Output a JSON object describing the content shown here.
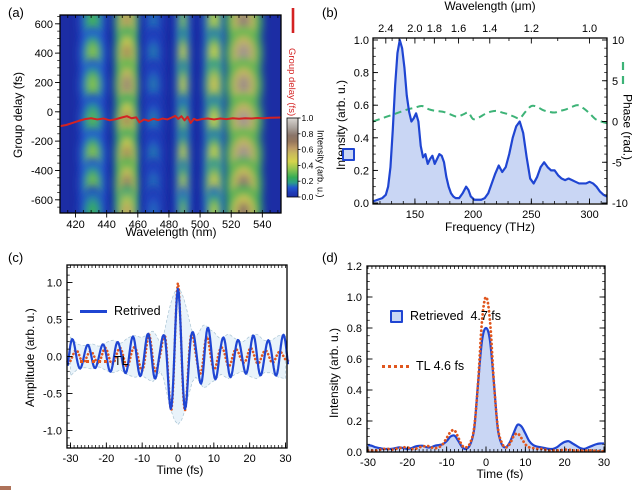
{
  "colors": {
    "blue": "#1f45d2",
    "blue_fill": "#c9d6f4",
    "orange": "#e0561e",
    "green": "#3db377",
    "red": "#d42222",
    "envelope_fill": "#e9f3fa",
    "envelope_edge": "#a9c4d4",
    "heat_bg": "#1c2da4",
    "heat_stops": [
      [
        0,
        "#1c2da4"
      ],
      [
        0.06,
        "#1f3cb8"
      ],
      [
        0.12,
        "#2257d0"
      ],
      [
        0.18,
        "#2b9c8a"
      ],
      [
        0.25,
        "#35ad55"
      ],
      [
        0.35,
        "#8ec44e"
      ],
      [
        0.45,
        "#d6d44c"
      ],
      [
        0.55,
        "#c9b95c"
      ],
      [
        0.62,
        "#bd9a66"
      ],
      [
        0.7,
        "#97775c"
      ],
      [
        0.78,
        "#8a7468"
      ],
      [
        0.88,
        "#aca49e"
      ],
      [
        1,
        "#d9d5d1"
      ]
    ]
  },
  "chart_data": [
    {
      "type": "heatmap",
      "panel_label": "(a)",
      "xlabel": "Wavelength (nm)",
      "ylabel": "Group delay (fs)",
      "xlim": [
        410,
        552
      ],
      "ylim": [
        -690,
        660
      ],
      "x_ticks": [
        420,
        440,
        460,
        480,
        500,
        520,
        540
      ],
      "y_ticks": [
        600,
        400,
        200,
        0,
        -200,
        -400,
        -600
      ],
      "colorbar": {
        "title": "Intensity (arb. u.)",
        "ticks": [
          "1.0",
          "0.8",
          "0.6",
          "0.4",
          "0.2",
          "0.0"
        ],
        "range": [
          0,
          1
        ]
      },
      "heat_columns": [
        [
          431,
          0.38,
          9
        ],
        [
          453,
          0.85,
          8
        ],
        [
          470,
          0.18,
          7
        ],
        [
          489,
          0.5,
          4.5
        ],
        [
          509,
          0.55,
          7
        ],
        [
          528,
          1.0,
          12
        ]
      ],
      "heat_rows": [
        [
          620,
          0.85
        ],
        [
          400,
          0.95
        ],
        [
          185,
          1.0
        ],
        [
          -55,
          0.9
        ],
        [
          -290,
          0.95
        ],
        [
          -490,
          0.95
        ],
        [
          -680,
          0.8
        ]
      ],
      "overlay_line": {
        "label": "Group delay (fs)",
        "points": [
          [
            410,
            -98
          ],
          [
            414,
            -90
          ],
          [
            418,
            -76
          ],
          [
            422,
            -62
          ],
          [
            426,
            -50
          ],
          [
            430,
            -44
          ],
          [
            434,
            -52
          ],
          [
            438,
            -46
          ],
          [
            442,
            -58
          ],
          [
            446,
            -50
          ],
          [
            450,
            -38
          ],
          [
            453,
            -30
          ],
          [
            456,
            -44
          ],
          [
            459,
            -38
          ],
          [
            461,
            -72
          ],
          [
            464,
            -52
          ],
          [
            467,
            -62
          ],
          [
            470,
            -48
          ],
          [
            473,
            -56
          ],
          [
            476,
            -46
          ],
          [
            479,
            -52
          ],
          [
            482,
            -38
          ],
          [
            484,
            -28
          ],
          [
            486,
            -48
          ],
          [
            488,
            -30
          ],
          [
            490,
            -58
          ],
          [
            492,
            -34
          ],
          [
            494,
            -76
          ],
          [
            496,
            -48
          ],
          [
            498,
            -58
          ],
          [
            501,
            -50
          ],
          [
            505,
            -46
          ],
          [
            509,
            -52
          ],
          [
            513,
            -46
          ],
          [
            517,
            -50
          ],
          [
            521,
            -44
          ],
          [
            525,
            -47
          ],
          [
            529,
            -44
          ],
          [
            533,
            -46
          ],
          [
            537,
            -42
          ],
          [
            541,
            -44
          ],
          [
            545,
            -41
          ],
          [
            549,
            -40
          ],
          [
            552,
            -39
          ]
        ]
      }
    },
    {
      "type": "line",
      "panel_label": "(b)",
      "top_axis": {
        "title": "Wavelength (μm)",
        "tick_labels": [
          "2.4",
          "2.0",
          "1.8",
          "1.6",
          "1.4",
          "1.2",
          "1.0"
        ],
        "tick_freqs": [
          125,
          150,
          166.7,
          187.5,
          214.3,
          250,
          300
        ],
        "minor_freqs": [
          130.4,
          136.4,
          142.9,
          157.9,
          176.5,
          200,
          230.8,
          272.7
        ]
      },
      "xlabel": "Frequency (THz)",
      "ylabel": "Intensity (arb. u.)",
      "y2label": "Phase (rad.)",
      "xlim": [
        114,
        315
      ],
      "ylim": [
        0,
        1
      ],
      "y2lim": [
        -10,
        10
      ],
      "x_ticks": [
        150,
        200,
        250,
        300
      ],
      "y_ticks": [
        "1.0",
        "0.8",
        "0.6",
        "0.4",
        "0.2",
        "0.0"
      ],
      "y2_ticks": [
        "10",
        "5",
        "0",
        "-5",
        "-10"
      ],
      "series": [
        {
          "name": "intensity",
          "x": [
            114,
            118,
            122,
            125,
            127,
            129,
            131,
            133,
            135,
            137,
            139,
            141,
            143,
            145,
            147,
            149,
            151,
            153,
            155,
            157,
            159,
            161,
            163,
            165,
            167,
            169,
            171,
            173,
            175,
            177,
            179,
            181,
            183,
            185,
            188,
            191,
            194,
            196,
            198,
            201,
            204,
            207,
            210,
            213,
            216,
            219,
            222,
            225,
            228,
            231,
            234,
            237,
            240,
            243,
            246,
            249,
            252,
            255,
            258,
            261,
            264,
            267,
            270,
            273,
            276,
            279,
            282,
            285,
            288,
            291,
            294,
            297,
            300,
            303,
            306,
            309,
            312,
            315
          ],
          "y": [
            0.01,
            0.02,
            0.03,
            0.05,
            0.1,
            0.22,
            0.45,
            0.72,
            0.92,
            1.0,
            0.95,
            0.83,
            0.66,
            0.56,
            0.5,
            0.52,
            0.55,
            0.5,
            0.35,
            0.28,
            0.3,
            0.24,
            0.27,
            0.29,
            0.24,
            0.27,
            0.3,
            0.29,
            0.25,
            0.16,
            0.1,
            0.06,
            0.04,
            0.03,
            0.03,
            0.06,
            0.1,
            0.08,
            0.04,
            0.02,
            0.02,
            0.02,
            0.03,
            0.06,
            0.12,
            0.18,
            0.23,
            0.19,
            0.22,
            0.3,
            0.4,
            0.47,
            0.5,
            0.43,
            0.28,
            0.15,
            0.12,
            0.16,
            0.22,
            0.25,
            0.22,
            0.2,
            0.2,
            0.17,
            0.15,
            0.14,
            0.15,
            0.14,
            0.13,
            0.12,
            0.12,
            0.12,
            0.13,
            0.12,
            0.1,
            0.07,
            0.05,
            0.04
          ]
        },
        {
          "name": "phase",
          "x": [
            114,
            120,
            126,
            132,
            138,
            144,
            150,
            156,
            162,
            168,
            174,
            180,
            186,
            192,
            196,
            200,
            205,
            210,
            215,
            220,
            225,
            230,
            235,
            240,
            245,
            250,
            255,
            260,
            265,
            270,
            275,
            280,
            285,
            290,
            295,
            300,
            305,
            310,
            315
          ],
          "y": [
            0.0,
            0.3,
            0.6,
            0.9,
            1.2,
            1.5,
            1.7,
            1.9,
            1.5,
            1.3,
            1.2,
            0.9,
            0.6,
            0.9,
            1.1,
            0.3,
            0.5,
            0.9,
            1.2,
            1.3,
            1.1,
            0.9,
            0.6,
            0.4,
            1.2,
            1.9,
            1.8,
            1.4,
            1.2,
            1.1,
            1.3,
            1.5,
            1.8,
            2.0,
            1.6,
            1.0,
            0.3,
            0.0,
            -0.2
          ]
        }
      ]
    },
    {
      "type": "line",
      "panel_label": "(c)",
      "xlabel": "Time (fs)",
      "ylabel": "Amplitude (arb. u.)",
      "xlim": [
        -30,
        30
      ],
      "ylim": [
        -1.2,
        1.2
      ],
      "x_ticks": [
        -30,
        -20,
        -10,
        0,
        10,
        20,
        30
      ],
      "y_ticks": [
        "1.0",
        "0.5",
        "0.0",
        "-0.5",
        "-1.0"
      ],
      "legend": [
        {
          "label": "Retrived"
        },
        {
          "label": "TL"
        }
      ],
      "carrier_cycles_per_fs": {
        "retrieved": 0.238,
        "tl": 0.246
      },
      "envelope_retrieved": [
        [
          -30,
          0.26
        ],
        [
          -28,
          0.17
        ],
        [
          -26,
          0.15
        ],
        [
          -24,
          0.17
        ],
        [
          -22,
          0.14
        ],
        [
          -20,
          0.19
        ],
        [
          -18,
          0.22
        ],
        [
          -16,
          0.18
        ],
        [
          -14,
          0.25
        ],
        [
          -12,
          0.28
        ],
        [
          -10,
          0.26
        ],
        [
          -8,
          0.32
        ],
        [
          -7,
          0.34
        ],
        [
          -6,
          0.28
        ],
        [
          -5,
          0.2
        ],
        [
          -4,
          0.3
        ],
        [
          -3,
          0.52
        ],
        [
          -2,
          0.72
        ],
        [
          -1,
          0.86
        ],
        [
          0,
          0.92
        ],
        [
          1,
          0.86
        ],
        [
          2,
          0.72
        ],
        [
          3,
          0.52
        ],
        [
          4,
          0.34
        ],
        [
          5,
          0.28
        ],
        [
          6,
          0.34
        ],
        [
          7,
          0.42
        ],
        [
          8,
          0.41
        ],
        [
          9,
          0.36
        ],
        [
          10,
          0.33
        ],
        [
          12,
          0.24
        ],
        [
          14,
          0.3
        ],
        [
          16,
          0.24
        ],
        [
          18,
          0.2
        ],
        [
          20,
          0.27
        ],
        [
          22,
          0.3
        ],
        [
          24,
          0.22
        ],
        [
          26,
          0.22
        ],
        [
          28,
          0.28
        ],
        [
          30,
          0.3
        ]
      ],
      "envelope_tl": [
        [
          -30,
          0.08
        ],
        [
          -28,
          0.09
        ],
        [
          -26,
          0.08
        ],
        [
          -24,
          0.07
        ],
        [
          -22,
          0.1
        ],
        [
          -20,
          0.12
        ],
        [
          -18,
          0.1
        ],
        [
          -16,
          0.12
        ],
        [
          -14,
          0.14
        ],
        [
          -12,
          0.12
        ],
        [
          -10,
          0.2
        ],
        [
          -8,
          0.3
        ],
        [
          -7,
          0.28
        ],
        [
          -6,
          0.18
        ],
        [
          -5,
          0.12
        ],
        [
          -4,
          0.28
        ],
        [
          -3,
          0.5
        ],
        [
          -2,
          0.73
        ],
        [
          -1,
          0.9
        ],
        [
          0,
          1.0
        ],
        [
          1,
          0.9
        ],
        [
          2,
          0.73
        ],
        [
          3,
          0.5
        ],
        [
          4,
          0.3
        ],
        [
          5,
          0.18
        ],
        [
          6,
          0.22
        ],
        [
          7,
          0.3
        ],
        [
          8,
          0.28
        ],
        [
          9,
          0.22
        ],
        [
          10,
          0.18
        ],
        [
          12,
          0.12
        ],
        [
          14,
          0.14
        ],
        [
          16,
          0.1
        ],
        [
          18,
          0.08
        ],
        [
          20,
          0.12
        ],
        [
          22,
          0.1
        ],
        [
          24,
          0.08
        ],
        [
          26,
          0.09
        ],
        [
          28,
          0.07
        ],
        [
          30,
          0.06
        ]
      ]
    },
    {
      "type": "line",
      "panel_label": "(d)",
      "xlabel": "Time (fs)",
      "ylabel": "Intensity (arb. u.)",
      "xlim": [
        -30,
        30
      ],
      "ylim": [
        0,
        1.2
      ],
      "x_ticks": [
        -30,
        -20,
        -10,
        0,
        10,
        20,
        30
      ],
      "y_ticks": [
        "1.2",
        "1.0",
        "0.8",
        "0.6",
        "0.4",
        "0.2",
        "0.0"
      ],
      "legend": [
        {
          "label": "Retrieved  4.7 fs"
        },
        {
          "label": "TL 4.6 fs"
        }
      ],
      "x_start": -30,
      "x_step": 1,
      "series": [
        {
          "name": "Retrieved",
          "y": [
            0.045,
            0.04,
            0.03,
            0.025,
            0.02,
            0.02,
            0.02,
            0.025,
            0.03,
            0.025,
            0.02,
            0.025,
            0.035,
            0.04,
            0.04,
            0.03,
            0.03,
            0.04,
            0.045,
            0.05,
            0.07,
            0.1,
            0.105,
            0.07,
            0.03,
            0.02,
            0.05,
            0.15,
            0.45,
            0.72,
            0.8,
            0.72,
            0.45,
            0.15,
            0.05,
            0.03,
            0.06,
            0.12,
            0.175,
            0.165,
            0.12,
            0.07,
            0.045,
            0.035,
            0.03,
            0.025,
            0.02,
            0.02,
            0.03,
            0.05,
            0.065,
            0.07,
            0.055,
            0.04,
            0.025,
            0.02,
            0.03,
            0.04,
            0.05,
            0.055,
            0.055
          ]
        },
        {
          "name": "TL",
          "y": [
            0.01,
            0.01,
            0.01,
            0.015,
            0.02,
            0.02,
            0.015,
            0.02,
            0.025,
            0.03,
            0.03,
            0.02,
            0.02,
            0.03,
            0.035,
            0.04,
            0.03,
            0.025,
            0.03,
            0.05,
            0.09,
            0.13,
            0.14,
            0.09,
            0.04,
            0.03,
            0.06,
            0.16,
            0.45,
            0.85,
            1.0,
            0.85,
            0.45,
            0.16,
            0.06,
            0.03,
            0.05,
            0.1,
            0.12,
            0.09,
            0.05,
            0.03,
            0.025,
            0.02,
            0.02,
            0.015,
            0.01,
            0.01,
            0.01,
            0.012,
            0.015,
            0.015,
            0.01,
            0.01,
            0.008,
            0.008,
            0.01,
            0.01,
            0.006,
            0.005,
            0.005
          ]
        }
      ]
    }
  ]
}
